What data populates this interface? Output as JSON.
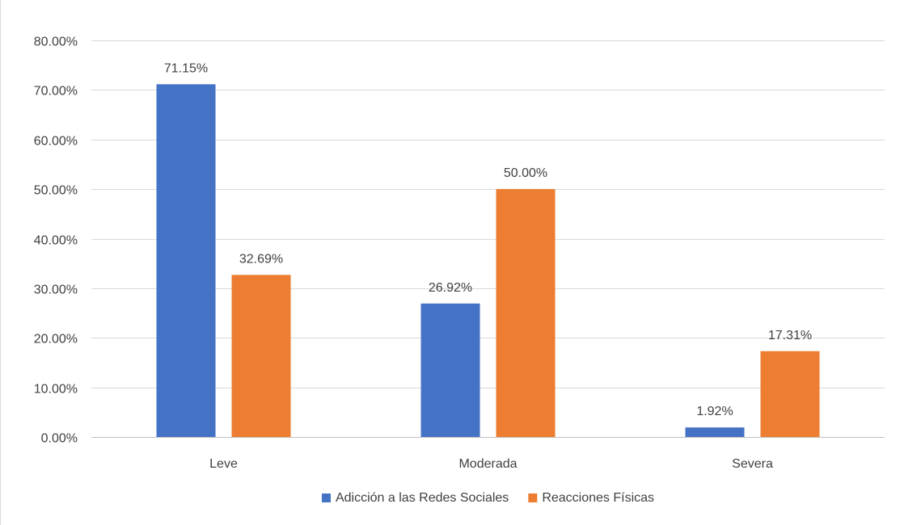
{
  "chart_data": {
    "type": "bar",
    "categories": [
      "Leve",
      "Moderada",
      "Severa"
    ],
    "series": [
      {
        "name": "Adicción a las Redes Sociales",
        "values": [
          71.15,
          26.92,
          1.92
        ],
        "labels": [
          "71.15%",
          "26.92%",
          "1.92%"
        ],
        "color": "#4472C4"
      },
      {
        "name": "Reacciones Físicas",
        "values": [
          32.69,
          50.0,
          17.31
        ],
        "labels": [
          "32.69%",
          "50.00%",
          "17.31%"
        ],
        "color": "#ED7D31"
      }
    ],
    "ylim": [
      0,
      80
    ],
    "ytick_labels": [
      "0.00%",
      "10.00%",
      "20.00%",
      "30.00%",
      "40.00%",
      "50.00%",
      "60.00%",
      "70.00%",
      "80.00%"
    ],
    "grid": true,
    "legend_position": "bottom",
    "gridline_color": "#d9d9d9",
    "axis_color": "#bfbfbf"
  }
}
